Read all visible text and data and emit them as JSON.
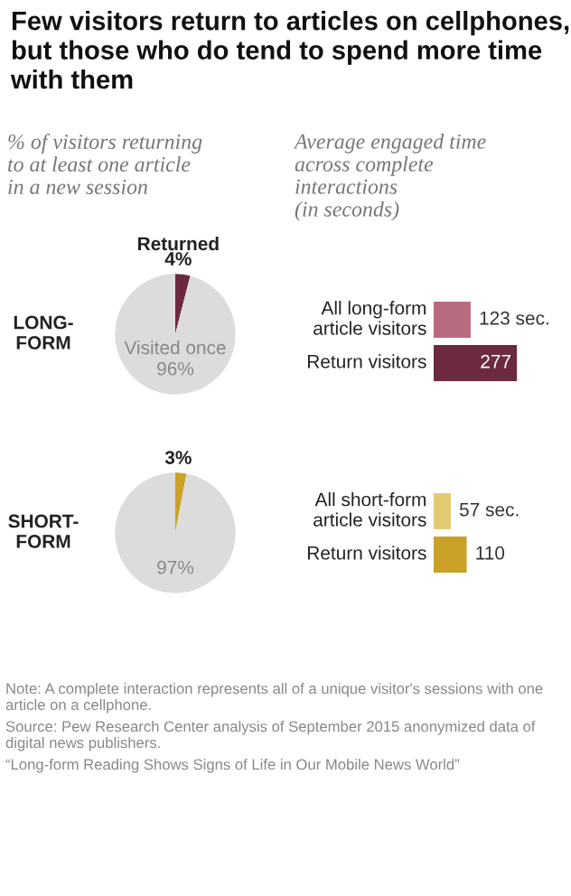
{
  "chart_data": [
    {
      "type": "pie",
      "title": "Few visitors return to articles on cellphones, but those who do tend to spend more time with them",
      "subtitle": "% of visitors returning to at least one article in a new session",
      "ylabel": "LONG-FORM",
      "categories": [
        "Returned",
        "Visited once"
      ],
      "values": [
        4,
        96
      ],
      "value_labels": [
        "4%",
        "96%"
      ],
      "colors": [
        "#6b2a40",
        "#dcdcdc"
      ]
    },
    {
      "type": "bar",
      "orientation": "horizontal",
      "subtitle": "Average engaged time across complete interactions (in seconds)",
      "categories": [
        "All long-form article visitors",
        "Return visitors"
      ],
      "values": [
        123,
        277
      ],
      "value_labels": [
        "123 sec.",
        "277"
      ],
      "colors": [
        "#b86a80",
        "#6b2a40"
      ]
    },
    {
      "type": "pie",
      "ylabel": "SHORT-FORM",
      "categories": [
        null,
        null
      ],
      "values": [
        3,
        97
      ],
      "value_labels": [
        "3%",
        "97%"
      ],
      "colors": [
        "#c9a227",
        "#dcdcdc"
      ]
    },
    {
      "type": "bar",
      "orientation": "horizontal",
      "categories": [
        "All short-form article visitors",
        "Return visitors"
      ],
      "values": [
        57,
        110
      ],
      "value_labels": [
        "57 sec.",
        "110"
      ],
      "colors": [
        "#e2ca74",
        "#c9a227"
      ],
      "annotations": [
        "Note: A complete interaction represents all of a unique visitor's sessions with one article on a cellphone.",
        "Source: Pew Research Center analysis of September 2015 anonymized data of digital news publishers.",
        "“Long-form Reading Shows Signs of Life in Our Mobile News World”"
      ]
    }
  ]
}
